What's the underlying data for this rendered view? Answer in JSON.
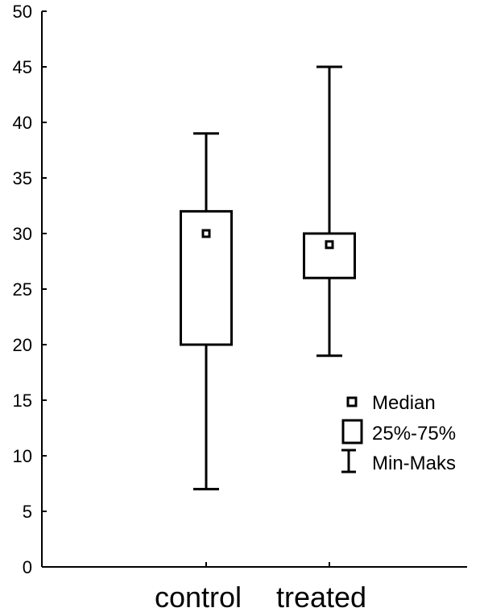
{
  "chart_data": {
    "type": "box",
    "categories": [
      "control",
      "treated"
    ],
    "boxes": [
      {
        "category": "control",
        "min": 7,
        "q1": 20,
        "median": 30,
        "q3": 32,
        "max": 39
      },
      {
        "category": "treated",
        "min": 19,
        "q1": 26,
        "median": 29,
        "q3": 30,
        "max": 45
      }
    ],
    "ylim": [
      0,
      50
    ],
    "yticks": [
      0,
      5,
      10,
      15,
      20,
      25,
      30,
      35,
      40,
      45,
      50
    ],
    "xlabel": "",
    "ylabel": "",
    "grid": false,
    "legend": {
      "position": "right",
      "entries": [
        {
          "symbol": "median-marker",
          "label": "Median"
        },
        {
          "symbol": "box",
          "label": "25%-75%"
        },
        {
          "symbol": "whisker",
          "label": "Min-Maks"
        }
      ]
    },
    "colors": {
      "stroke": "#000000",
      "background": "#ffffff"
    }
  }
}
